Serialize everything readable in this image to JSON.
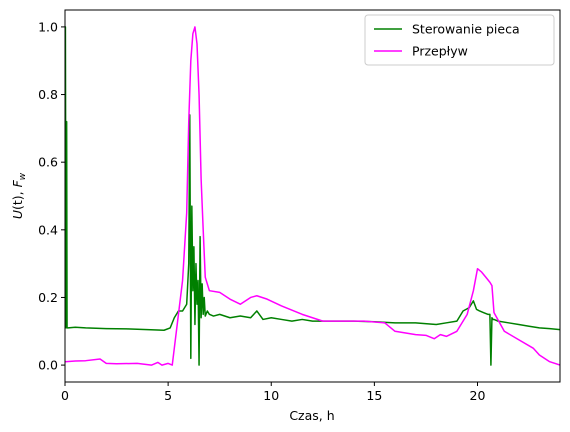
{
  "chart_data": {
    "type": "line",
    "title": "",
    "xlabel": "Czas, h",
    "ylabel_parts": [
      "U",
      "(t), ",
      "F",
      "w"
    ],
    "xlim": [
      0,
      24
    ],
    "ylim": [
      -0.05,
      1.05
    ],
    "xticks": [
      0,
      5,
      10,
      15,
      20
    ],
    "xtick_labels": [
      "0",
      "5",
      "10",
      "15",
      "20"
    ],
    "yticks": [
      0.0,
      0.2,
      0.4,
      0.6,
      0.8,
      1.0
    ],
    "ytick_labels": [
      "0.0",
      "0.2",
      "0.4",
      "0.6",
      "0.8",
      "1.0"
    ],
    "grid": false,
    "legend_position": "top-right",
    "series": [
      {
        "name": "Sterowanie pieca",
        "color": "#008000",
        "x": [
          0,
          0.02,
          0.05,
          0.08,
          0.1,
          0.15,
          0.5,
          1,
          2,
          3,
          4,
          4.8,
          5.1,
          5.3,
          5.5,
          5.7,
          5.9,
          6.0,
          6.05,
          6.1,
          6.15,
          6.2,
          6.25,
          6.3,
          6.35,
          6.4,
          6.45,
          6.5,
          6.55,
          6.6,
          6.65,
          6.7,
          6.75,
          6.8,
          6.9,
          7.0,
          7.2,
          7.5,
          8,
          8.5,
          9,
          9.3,
          9.6,
          10,
          10.5,
          11,
          11.5,
          12,
          12.5,
          13,
          14,
          15,
          16,
          17,
          18,
          18.5,
          19,
          19.3,
          19.6,
          19.8,
          19.95,
          20.1,
          20.3,
          20.5,
          20.6,
          20.65,
          20.7,
          20.75,
          20.8,
          21,
          21.5,
          22,
          22.5,
          23,
          23.5,
          24
        ],
        "y": [
          0.52,
          1.0,
          0.11,
          0.72,
          0.11,
          0.11,
          0.112,
          0.11,
          0.108,
          0.107,
          0.105,
          0.103,
          0.11,
          0.14,
          0.16,
          0.16,
          0.18,
          0.3,
          0.74,
          0.02,
          0.47,
          0.22,
          0.35,
          0.12,
          0.3,
          0.18,
          0.25,
          0.0,
          0.38,
          0.14,
          0.24,
          0.15,
          0.2,
          0.145,
          0.16,
          0.15,
          0.145,
          0.15,
          0.14,
          0.145,
          0.14,
          0.16,
          0.135,
          0.14,
          0.135,
          0.13,
          0.135,
          0.13,
          0.13,
          0.13,
          0.13,
          0.128,
          0.125,
          0.125,
          0.12,
          0.125,
          0.13,
          0.16,
          0.17,
          0.19,
          0.165,
          0.16,
          0.155,
          0.15,
          0.15,
          0.0,
          0.14,
          0.135,
          0.135,
          0.13,
          0.125,
          0.12,
          0.115,
          0.11,
          0.108,
          0.105
        ]
      },
      {
        "name": "Przepływ",
        "color": "#ff00ff",
        "x": [
          0,
          0.5,
          1.0,
          1.7,
          2.0,
          2.5,
          3.5,
          4.2,
          4.5,
          4.7,
          5.0,
          5.2,
          5.3,
          5.5,
          5.7,
          5.9,
          6.0,
          6.1,
          6.2,
          6.3,
          6.4,
          6.5,
          6.6,
          6.7,
          6.8,
          7.0,
          7.5,
          8.0,
          8.5,
          9.0,
          9.3,
          9.8,
          10.5,
          11.5,
          12.5,
          13.5,
          14.5,
          15.5,
          16.0,
          17.0,
          17.5,
          17.9,
          18.2,
          18.5,
          19.0,
          19.5,
          19.8,
          20.0,
          20.2,
          20.4,
          20.6,
          20.7,
          20.8,
          21.3,
          22.0,
          22.7,
          23.0,
          23.5,
          24.0
        ],
        "y": [
          0.01,
          0.012,
          0.013,
          0.018,
          0.005,
          0.004,
          0.005,
          0.0,
          0.008,
          0.0,
          0.005,
          0.0,
          0.05,
          0.15,
          0.25,
          0.45,
          0.72,
          0.9,
          0.98,
          1.0,
          0.95,
          0.8,
          0.55,
          0.4,
          0.26,
          0.22,
          0.215,
          0.195,
          0.18,
          0.2,
          0.205,
          0.195,
          0.175,
          0.15,
          0.13,
          0.13,
          0.13,
          0.125,
          0.1,
          0.09,
          0.088,
          0.078,
          0.09,
          0.085,
          0.1,
          0.15,
          0.22,
          0.285,
          0.275,
          0.26,
          0.245,
          0.235,
          0.155,
          0.1,
          0.075,
          0.05,
          0.03,
          0.01,
          0.0
        ]
      }
    ]
  }
}
